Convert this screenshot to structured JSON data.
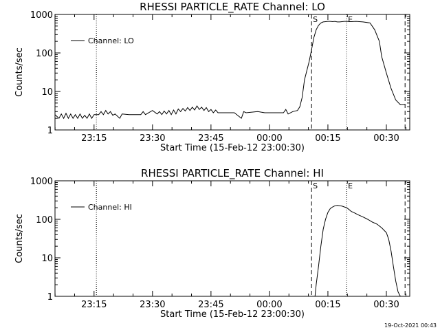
{
  "footer": {
    "timestamp": "19-Oct-2021 00:43"
  },
  "chart_data": [
    {
      "type": "line",
      "title": "RHESSI PARTICLE_RATE Channel: LO",
      "xlabel": "Start Time (15-Feb-12 23:00:30)",
      "ylabel": "Counts/sec",
      "yscale": "log",
      "ylim": [
        1,
        1000
      ],
      "xlim": [
        23.083,
        24.6
      ],
      "xticks": [
        23.25,
        23.5,
        23.75,
        24.0,
        24.25,
        24.5
      ],
      "xtick_labels": [
        "23:15",
        "23:30",
        "23:45",
        "00:00",
        "00:15",
        "00:30"
      ],
      "yticks": [
        1,
        10,
        100,
        1000
      ],
      "ytick_labels": [
        "1",
        "10",
        "100",
        "1000"
      ],
      "legend": {
        "entry": "Channel: LO",
        "placement": "top-left"
      },
      "vlines": [
        {
          "x": 23.26,
          "style": "dotted",
          "label": ""
        },
        {
          "x": 24.18,
          "style": "dashed",
          "label": "S"
        },
        {
          "x": 24.33,
          "style": "dotted",
          "label": "E"
        },
        {
          "x": 24.58,
          "style": "dashed",
          "label": ""
        }
      ],
      "series": [
        {
          "x": [
            23.083,
            23.1,
            23.11,
            23.12,
            23.13,
            23.14,
            23.15,
            23.16,
            23.17,
            23.18,
            23.19,
            23.2,
            23.21,
            23.22,
            23.23,
            23.24,
            23.25,
            23.27,
            23.28,
            23.29,
            23.3,
            23.31,
            23.32,
            23.33,
            23.34,
            23.36,
            23.37,
            23.4,
            23.45,
            23.46,
            23.47,
            23.5,
            23.52,
            23.53,
            23.54,
            23.55,
            23.56,
            23.57,
            23.58,
            23.59,
            23.6,
            23.61,
            23.62,
            23.63,
            23.64,
            23.65,
            23.66,
            23.67,
            23.68,
            23.69,
            23.7,
            23.71,
            23.72,
            23.73,
            23.74,
            23.75,
            23.76,
            23.77,
            23.78,
            23.8,
            23.85,
            23.88,
            23.89,
            23.9,
            23.95,
            23.98,
            24.0,
            24.06,
            24.07,
            24.08,
            24.1,
            24.12,
            24.13,
            24.14,
            24.15,
            24.17,
            24.18,
            24.19,
            24.2,
            24.21,
            24.22,
            24.23,
            24.24,
            24.25,
            24.26,
            24.27,
            24.28,
            24.29,
            24.3,
            24.31,
            24.32,
            24.33,
            24.35,
            24.37,
            24.4,
            24.43,
            24.45,
            24.47,
            24.48,
            24.5,
            24.52,
            24.54,
            24.56,
            24.58
          ],
          "y": [
            2.5,
            2,
            2.6,
            2,
            2.7,
            2,
            2.6,
            2,
            2.5,
            2,
            2.6,
            2,
            2.4,
            2,
            2.6,
            2,
            2.5,
            2.5,
            3,
            2.5,
            3.2,
            2.6,
            3,
            2.4,
            2.6,
            2,
            2.6,
            2.5,
            2.5,
            3,
            2.5,
            3.2,
            2.6,
            3,
            2.5,
            3.1,
            2.6,
            3.2,
            2.5,
            3.3,
            2.6,
            3.5,
            3,
            3.6,
            3.1,
            3.8,
            3.2,
            3.9,
            3.3,
            4.2,
            3.4,
            3.9,
            3.2,
            3.8,
            3,
            3.4,
            2.8,
            3.3,
            2.8,
            2.8,
            2.8,
            2,
            3,
            2.8,
            3,
            2.8,
            2.8,
            2.8,
            3.4,
            2.6,
            3,
            3.2,
            4,
            7,
            20,
            60,
            120,
            250,
            400,
            520,
            600,
            640,
            650,
            660,
            660,
            650,
            660,
            640,
            640,
            650,
            660,
            660,
            650,
            660,
            640,
            600,
            400,
            200,
            80,
            30,
            12,
            6,
            4.5,
            4.5
          ]
        }
      ]
    },
    {
      "type": "line",
      "title": "RHESSI PARTICLE_RATE Channel: HI",
      "xlabel": "Start Time (15-Feb-12 23:00:30)",
      "ylabel": "Counts/sec",
      "yscale": "log",
      "ylim": [
        1,
        1000
      ],
      "xlim": [
        23.083,
        24.6
      ],
      "xticks": [
        23.25,
        23.5,
        23.75,
        24.0,
        24.25,
        24.5
      ],
      "xtick_labels": [
        "23:15",
        "23:30",
        "23:45",
        "00:00",
        "00:15",
        "00:30"
      ],
      "yticks": [
        1,
        10,
        100,
        1000
      ],
      "ytick_labels": [
        "1",
        "10",
        "100",
        "1000"
      ],
      "legend": {
        "entry": "Channel: HI",
        "placement": "top-left"
      },
      "vlines": [
        {
          "x": 23.26,
          "style": "dotted",
          "label": ""
        },
        {
          "x": 24.18,
          "style": "dashed",
          "label": "S"
        },
        {
          "x": 24.33,
          "style": "dotted",
          "label": "E"
        },
        {
          "x": 24.58,
          "style": "dashed",
          "label": ""
        }
      ],
      "series": [
        {
          "x": [
            24.195,
            24.2,
            24.21,
            24.22,
            24.23,
            24.24,
            24.25,
            24.26,
            24.27,
            24.28,
            24.29,
            24.3,
            24.31,
            24.32,
            24.33,
            24.34,
            24.35,
            24.36,
            24.37,
            24.38,
            24.4,
            24.42,
            24.44,
            24.46,
            24.48,
            24.5,
            24.51,
            24.52,
            24.53,
            24.54,
            24.55,
            24.56
          ],
          "y": [
            1,
            2,
            6,
            20,
            55,
            100,
            150,
            190,
            210,
            225,
            230,
            225,
            220,
            210,
            200,
            180,
            160,
            150,
            140,
            130,
            115,
            100,
            85,
            75,
            60,
            45,
            30,
            15,
            6,
            2.5,
            1.3,
            1
          ]
        }
      ]
    }
  ]
}
